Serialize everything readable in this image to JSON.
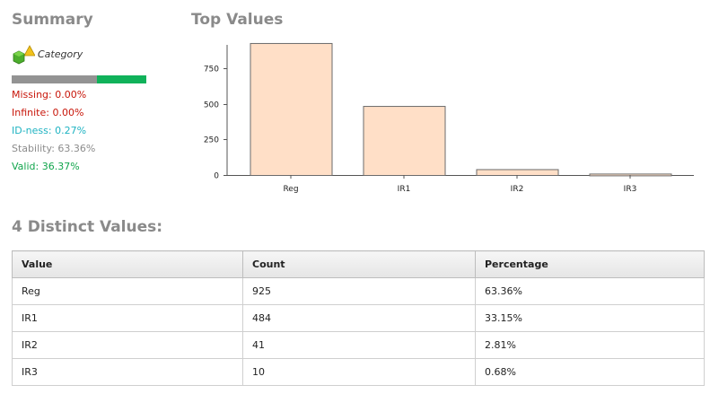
{
  "summary": {
    "title": "Summary",
    "category_label": "Category",
    "stability_fraction": 0.6336,
    "colors": {
      "grey": "#939393",
      "green": "#10b25a"
    },
    "stats": {
      "missing": "Missing: 0.00%",
      "infinite": "Infinite: 0.00%",
      "idness": "ID-ness: 0.27%",
      "stability": "Stability: 63.36%",
      "valid": "Valid: 36.37%"
    }
  },
  "top_values": {
    "title": "Top Values"
  },
  "chart_data": {
    "type": "bar",
    "categories": [
      "Reg",
      "IR1",
      "IR2",
      "IR3"
    ],
    "values": [
      925,
      484,
      41,
      10
    ],
    "yticks": [
      0,
      250,
      500,
      750
    ],
    "ylim": [
      0,
      975
    ],
    "bar_color": "#ffdfc7"
  },
  "distinct": {
    "title": "4 Distinct Values:",
    "headers": [
      "Value",
      "Count",
      "Percentage"
    ],
    "rows": [
      [
        "Reg",
        "925",
        "63.36%"
      ],
      [
        "IR1",
        "484",
        "33.15%"
      ],
      [
        "IR2",
        "41",
        "2.81%"
      ],
      [
        "IR3",
        "10",
        "0.68%"
      ]
    ]
  }
}
